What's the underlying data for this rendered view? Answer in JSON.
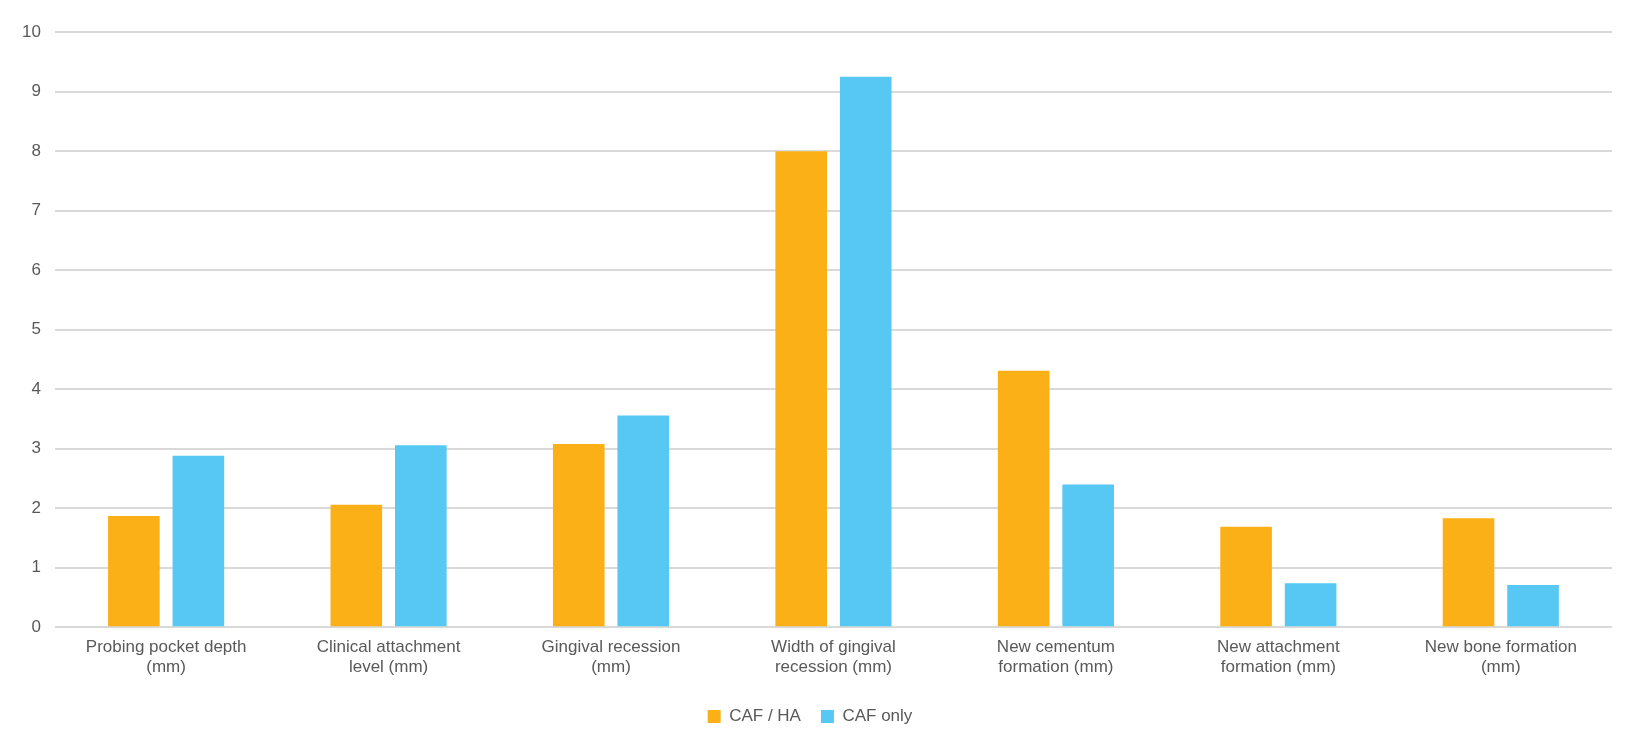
{
  "chart_data": {
    "type": "bar",
    "categories": [
      "Probing pocket depth (mm)",
      "Clinical attachment level (mm)",
      "Gingival recession (mm)",
      "Width of gingival recession (mm)",
      "New cementum formation (mm)",
      "New attachment formation (mm)",
      "New bone formation (mm)"
    ],
    "series": [
      {
        "name": "CAF / HA",
        "color": "#fbb017",
        "values": [
          1.87,
          2.06,
          3.08,
          8.0,
          4.31,
          1.69,
          1.83
        ]
      },
      {
        "name": "CAF only",
        "color": "#56c8f3",
        "values": [
          2.88,
          3.06,
          3.56,
          9.25,
          2.4,
          0.74,
          0.71
        ]
      }
    ],
    "ylim": [
      0,
      10
    ],
    "yticks": [
      0,
      1,
      2,
      3,
      4,
      5,
      6,
      7,
      8,
      9,
      10
    ],
    "grid": "y",
    "legend": "bottom"
  }
}
